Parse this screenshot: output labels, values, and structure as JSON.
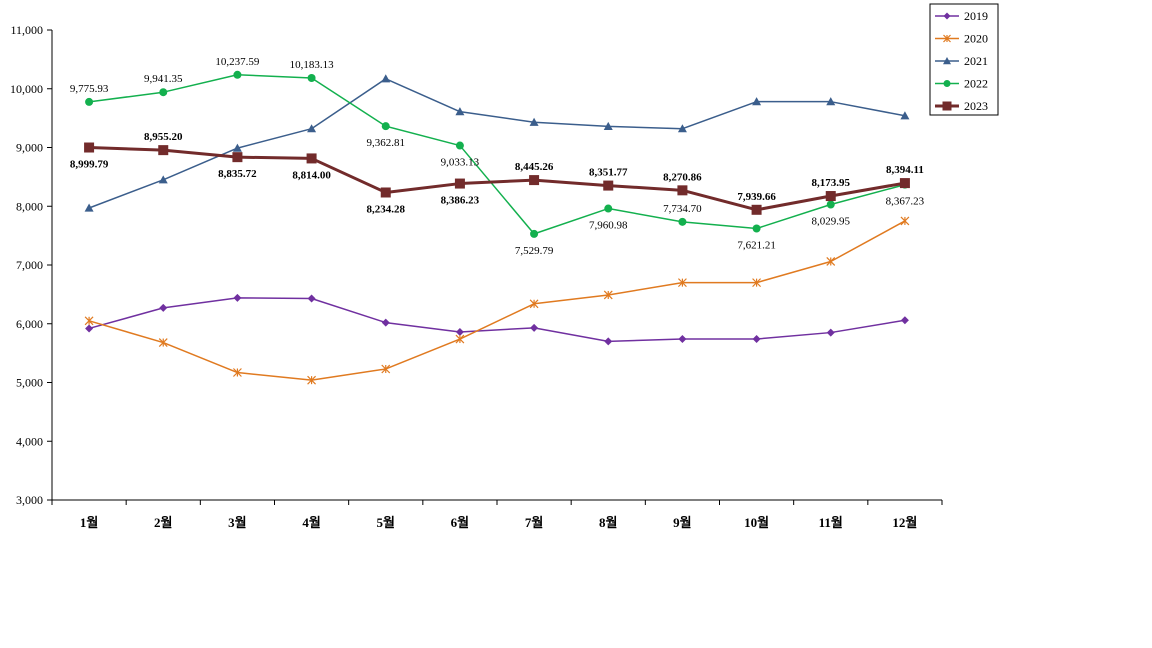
{
  "chart_data": {
    "type": "line",
    "title": "",
    "xlabel": "",
    "ylabel": "",
    "ylim": [
      3000,
      11000
    ],
    "ytick_step": 1000,
    "grid": false,
    "legend_position": "top-right",
    "categories": [
      "1월",
      "2월",
      "3월",
      "4월",
      "5월",
      "6월",
      "7월",
      "8월",
      "9월",
      "10월",
      "11월",
      "12월"
    ],
    "series": [
      {
        "name": "2019",
        "color": "#7030a0",
        "marker": "diamond",
        "line_width": 1.5,
        "values": [
          5920,
          6270,
          6440,
          6430,
          6020,
          5860,
          5930,
          5700,
          5740,
          5740,
          5850,
          6060
        ]
      },
      {
        "name": "2020",
        "color": "#e07a20",
        "marker": "asterisk",
        "line_width": 1.5,
        "values": [
          6050,
          5680,
          5170,
          5040,
          5230,
          5740,
          6340,
          6490,
          6700,
          6700,
          7060,
          7750
        ]
      },
      {
        "name": "2021",
        "color": "#3b5e8c",
        "marker": "triangle",
        "line_width": 1.5,
        "values": [
          7970,
          8450,
          8990,
          9320,
          10170,
          9610,
          9430,
          9360,
          9320,
          9780,
          9780,
          9540
        ]
      },
      {
        "name": "2022",
        "color": "#13b04e",
        "marker": "circle",
        "line_width": 1.5,
        "values": [
          9775.93,
          9941.35,
          10237.59,
          10183.13,
          9362.81,
          9033.13,
          7529.79,
          7960.98,
          7734.7,
          7621.21,
          8029.95,
          8367.23
        ],
        "labels": [
          "9,775.93",
          "9,941.35",
          "10,237.59",
          "10,183.13",
          "9,362.81",
          "9,033.13",
          "7,529.79",
          "7,960.98",
          "7,734.70",
          "7,621.21",
          "8,029.95",
          "8,367.23"
        ],
        "label_pos": [
          "above",
          "above",
          "above",
          "above",
          "below",
          "below",
          "below",
          "below",
          "above",
          "below",
          "below",
          "below"
        ]
      },
      {
        "name": "2023",
        "color": "#722b2b",
        "marker": "square",
        "line_width": 3,
        "values": [
          8999.79,
          8955.2,
          8835.72,
          8814.0,
          8234.28,
          8386.23,
          8445.26,
          8351.77,
          8270.86,
          7939.66,
          8173.95,
          8394.11
        ],
        "labels": [
          "8,999.79",
          "8,955.20",
          "8,835.72",
          "8,814.00",
          "8,234.28",
          "8,386.23",
          "8,445.26",
          "8,351.77",
          "8,270.86",
          "7,939.66",
          "8,173.95",
          "8,394.11"
        ],
        "label_pos": [
          "below",
          "above",
          "below",
          "below",
          "below",
          "below",
          "above",
          "above",
          "above",
          "above",
          "above",
          "above"
        ],
        "label_bold": true
      }
    ]
  }
}
